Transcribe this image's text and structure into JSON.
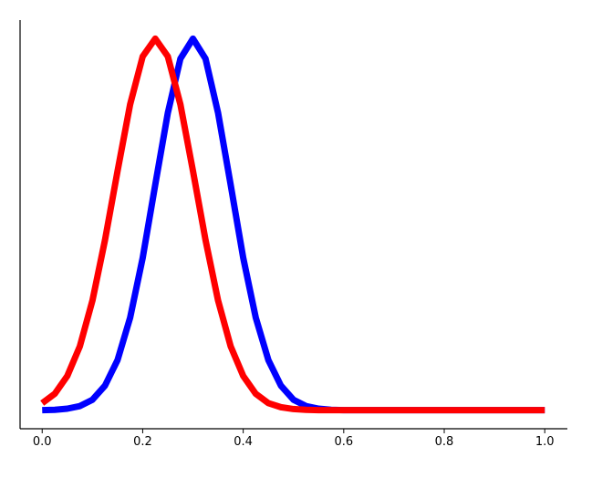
{
  "chart_data": {
    "type": "line",
    "x": [
      0,
      0.025,
      0.05,
      0.075,
      0.1,
      0.125,
      0.15,
      0.175,
      0.2,
      0.225,
      0.25,
      0.275,
      0.3,
      0.325,
      0.35,
      0.375,
      0.4,
      0.425,
      0.45,
      0.475,
      0.5,
      0.525,
      0.55,
      0.575,
      0.6,
      0.7,
      0.8,
      0.9,
      1.0
    ],
    "series": [
      {
        "color": "#0000ff",
        "values": [
          0.0,
          0.001,
          0.004,
          0.011,
          0.028,
          0.066,
          0.135,
          0.249,
          0.41,
          0.607,
          0.8,
          0.946,
          1.0,
          0.946,
          0.8,
          0.607,
          0.41,
          0.249,
          0.135,
          0.066,
          0.028,
          0.011,
          0.004,
          0.001,
          0.0,
          0.0,
          0.0,
          0.0,
          0.0
        ]
      },
      {
        "color": "#ff0000",
        "values": [
          0.019,
          0.044,
          0.092,
          0.172,
          0.295,
          0.458,
          0.644,
          0.823,
          0.952,
          1.0,
          0.952,
          0.823,
          0.644,
          0.458,
          0.295,
          0.172,
          0.092,
          0.044,
          0.019,
          0.008,
          0.003,
          0.001,
          0.0,
          0.0,
          0.0,
          0.0,
          0.0,
          0.0,
          0.0
        ]
      }
    ],
    "xlim": [
      -0.044,
      1.045
    ],
    "ylim": [
      -0.05,
      1.05
    ],
    "xticks": [
      {
        "value": 0,
        "label": "0.0"
      },
      0.2,
      0.4,
      0.6,
      0.8,
      {
        "value": 1,
        "label": "1.0"
      }
    ]
  }
}
